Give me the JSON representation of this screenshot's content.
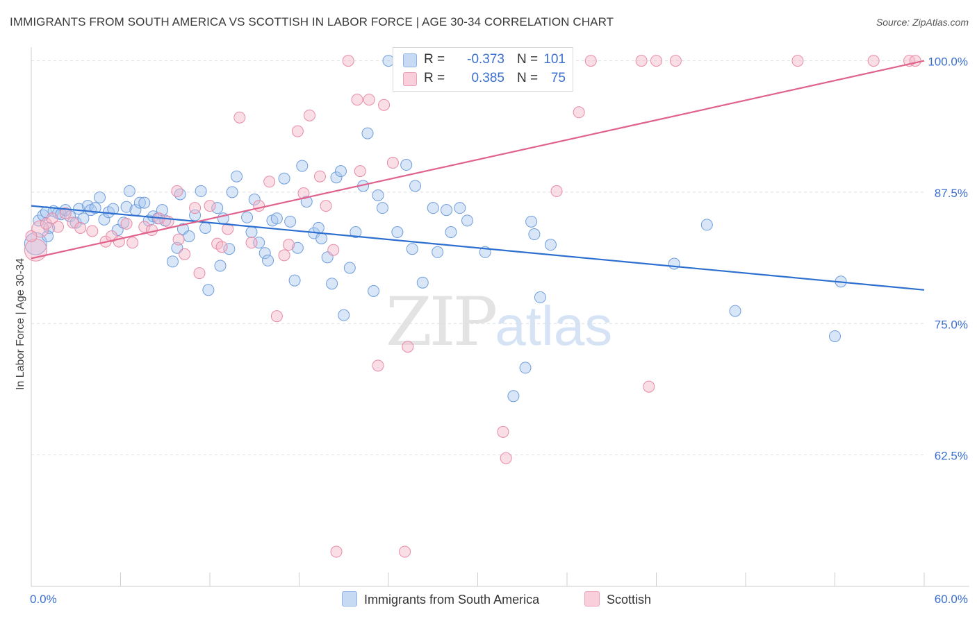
{
  "title": "IMMIGRANTS FROM SOUTH AMERICA VS SCOTTISH IN LABOR FORCE | AGE 30-34 CORRELATION CHART",
  "source": "Source: ZipAtlas.com",
  "watermark_main": "ZIP",
  "watermark_sub": "atlas",
  "legend": {
    "row1": {
      "r_label": "R =",
      "r_value": "-0.373",
      "n_label": "N =",
      "n_value": "101",
      "color": "#a9c8ef"
    },
    "row2": {
      "r_label": "R =",
      "r_value": "0.385",
      "n_label": "N =",
      "n_value": "75",
      "color": "#f5b5c8"
    }
  },
  "bottom_legend": {
    "series1": "Immigrants from South America",
    "series2": "Scottish"
  },
  "colors": {
    "blue_fill": "#a9c8ef",
    "blue_stroke": "#6e9ddb",
    "blue_line": "#2d6fd0",
    "pink_fill": "#f5b5c8",
    "pink_stroke": "#e88aa7",
    "pink_line": "#e0628d",
    "tick_text": "#3b6fcf",
    "grid": "#d8dde6"
  },
  "chart_data": {
    "type": "scatter",
    "title": "IMMIGRANTS FROM SOUTH AMERICA VS SCOTTISH IN LABOR FORCE | AGE 30-34 CORRELATION CHART",
    "xlabel": "",
    "ylabel": "In Labor Force | Age 30-34",
    "xlim": [
      0,
      60
    ],
    "ylim": [
      50.0,
      100.5
    ],
    "x_tick_labels": [
      "0.0%",
      "60.0%"
    ],
    "y_ticks": [
      62.5,
      75.0,
      87.5,
      100.0
    ],
    "y_tick_labels": [
      "62.5%",
      "75.0%",
      "87.5%",
      "100.0%"
    ],
    "grid": true,
    "legend_position": "top-center",
    "series": [
      {
        "name": "Immigrants from South America",
        "color": "#a9c8ef",
        "trend": {
          "x": [
            0,
            60
          ],
          "y": [
            86.2,
            78.2
          ]
        },
        "points": [
          [
            0.5,
            84.8
          ],
          [
            0.8,
            85.3
          ],
          [
            1.0,
            85.6
          ],
          [
            1.2,
            84.1
          ],
          [
            1.5,
            85.7
          ],
          [
            1.8,
            85.5
          ],
          [
            2.0,
            85.4
          ],
          [
            2.3,
            85.8
          ],
          [
            2.6,
            85.2
          ],
          [
            3.0,
            84.6
          ],
          [
            3.2,
            85.9
          ],
          [
            3.5,
            85.0
          ],
          [
            3.8,
            86.2
          ],
          [
            4.0,
            85.8
          ],
          [
            4.3,
            86.0
          ],
          [
            4.6,
            87.0
          ],
          [
            4.9,
            84.9
          ],
          [
            5.2,
            85.6
          ],
          [
            5.5,
            85.9
          ],
          [
            5.8,
            83.9
          ],
          [
            6.2,
            84.6
          ],
          [
            6.4,
            86.1
          ],
          [
            6.6,
            87.6
          ],
          [
            7.0,
            85.8
          ],
          [
            7.3,
            86.5
          ],
          [
            7.6,
            86.5
          ],
          [
            7.9,
            84.8
          ],
          [
            8.2,
            85.2
          ],
          [
            8.5,
            85.0
          ],
          [
            8.8,
            85.8
          ],
          [
            9.0,
            84.8
          ],
          [
            9.5,
            80.9
          ],
          [
            9.8,
            82.2
          ],
          [
            10.0,
            87.3
          ],
          [
            10.2,
            84.0
          ],
          [
            10.6,
            83.3
          ],
          [
            11.0,
            85.3
          ],
          [
            11.4,
            87.6
          ],
          [
            11.7,
            84.1
          ],
          [
            11.9,
            78.2
          ],
          [
            12.5,
            86.0
          ],
          [
            12.7,
            80.5
          ],
          [
            12.9,
            85.0
          ],
          [
            13.3,
            82.1
          ],
          [
            13.5,
            87.5
          ],
          [
            13.8,
            89.0
          ],
          [
            14.5,
            85.1
          ],
          [
            14.8,
            83.7
          ],
          [
            15.0,
            86.8
          ],
          [
            15.3,
            82.7
          ],
          [
            15.7,
            81.7
          ],
          [
            15.9,
            81.0
          ],
          [
            16.2,
            84.8
          ],
          [
            16.5,
            85.0
          ],
          [
            17.0,
            88.8
          ],
          [
            17.4,
            84.7
          ],
          [
            17.7,
            79.1
          ],
          [
            17.9,
            82.2
          ],
          [
            18.2,
            90.0
          ],
          [
            18.5,
            86.6
          ],
          [
            19.0,
            83.6
          ],
          [
            19.3,
            84.1
          ],
          [
            19.5,
            83.1
          ],
          [
            19.9,
            81.3
          ],
          [
            20.2,
            78.8
          ],
          [
            20.5,
            88.9
          ],
          [
            20.8,
            89.5
          ],
          [
            21.0,
            75.8
          ],
          [
            21.4,
            80.3
          ],
          [
            21.8,
            83.7
          ],
          [
            22.3,
            88.1
          ],
          [
            22.6,
            93.1
          ],
          [
            23.0,
            78.1
          ],
          [
            23.3,
            87.2
          ],
          [
            23.6,
            86.0
          ],
          [
            24.0,
            100.0
          ],
          [
            24.6,
            83.7
          ],
          [
            25.2,
            90.1
          ],
          [
            25.6,
            82.1
          ],
          [
            25.8,
            88.1
          ],
          [
            26.3,
            78.9
          ],
          [
            27.0,
            86.0
          ],
          [
            27.3,
            81.8
          ],
          [
            27.9,
            85.8
          ],
          [
            28.2,
            83.7
          ],
          [
            28.8,
            86.0
          ],
          [
            29.3,
            84.8
          ],
          [
            30.5,
            81.8
          ],
          [
            32.4,
            68.1
          ],
          [
            33.2,
            70.8
          ],
          [
            33.6,
            84.7
          ],
          [
            33.8,
            83.5
          ],
          [
            34.2,
            77.5
          ],
          [
            34.9,
            82.5
          ],
          [
            43.2,
            80.7
          ],
          [
            45.4,
            84.4
          ],
          [
            47.3,
            76.2
          ],
          [
            54.0,
            73.8
          ],
          [
            54.4,
            79.0
          ],
          [
            0.3,
            82.6
          ],
          [
            1.1,
            83.3
          ]
        ]
      },
      {
        "name": "Scottish",
        "color": "#f5b5c8",
        "trend": {
          "x": [
            0,
            60
          ],
          "y": [
            81.2,
            100.0
          ]
        },
        "points": [
          [
            0.3,
            82.0
          ],
          [
            0.6,
            84.0
          ],
          [
            1.0,
            84.5
          ],
          [
            1.4,
            85.0
          ],
          [
            1.8,
            84.2
          ],
          [
            2.3,
            85.5
          ],
          [
            2.8,
            84.6
          ],
          [
            3.3,
            84.1
          ],
          [
            4.1,
            83.8
          ],
          [
            5.0,
            82.8
          ],
          [
            5.4,
            83.3
          ],
          [
            5.9,
            82.8
          ],
          [
            6.4,
            84.5
          ],
          [
            6.8,
            82.7
          ],
          [
            7.6,
            84.2
          ],
          [
            8.1,
            83.9
          ],
          [
            8.6,
            85.0
          ],
          [
            9.2,
            84.7
          ],
          [
            9.8,
            87.6
          ],
          [
            9.9,
            83.0
          ],
          [
            10.3,
            81.6
          ],
          [
            11.0,
            86.0
          ],
          [
            11.3,
            79.8
          ],
          [
            12.0,
            86.2
          ],
          [
            12.5,
            82.6
          ],
          [
            12.8,
            82.3
          ],
          [
            13.2,
            84.0
          ],
          [
            14.0,
            94.6
          ],
          [
            14.8,
            82.7
          ],
          [
            15.3,
            86.2
          ],
          [
            16.0,
            88.5
          ],
          [
            16.5,
            75.7
          ],
          [
            17.0,
            81.5
          ],
          [
            17.3,
            82.5
          ],
          [
            17.9,
            93.3
          ],
          [
            18.3,
            87.4
          ],
          [
            18.7,
            94.8
          ],
          [
            19.4,
            89.0
          ],
          [
            19.8,
            86.2
          ],
          [
            20.3,
            82.0
          ],
          [
            21.3,
            100.0
          ],
          [
            21.9,
            96.3
          ],
          [
            22.1,
            89.5
          ],
          [
            22.7,
            96.3
          ],
          [
            23.3,
            71.0
          ],
          [
            23.7,
            95.8
          ],
          [
            24.3,
            90.3
          ],
          [
            25.3,
            72.8
          ],
          [
            26.3,
            100.0
          ],
          [
            28.0,
            100.0
          ],
          [
            30.1,
            100.0
          ],
          [
            31.9,
            100.0
          ],
          [
            31.5,
            100.0
          ],
          [
            33.0,
            100.0
          ],
          [
            34.1,
            100.0
          ],
          [
            35.3,
            87.6
          ],
          [
            36.8,
            95.1
          ],
          [
            37.6,
            100.0
          ],
          [
            41.0,
            100.0
          ],
          [
            42.0,
            100.0
          ],
          [
            43.3,
            100.0
          ],
          [
            51.5,
            100.0
          ],
          [
            56.6,
            100.0
          ],
          [
            59.0,
            100.0
          ],
          [
            59.4,
            100.0
          ],
          [
            41.5,
            69.0
          ],
          [
            31.7,
            64.7
          ],
          [
            31.9,
            62.2
          ],
          [
            20.5,
            53.3
          ],
          [
            25.1,
            53.3
          ],
          [
            30.2,
            100.0
          ],
          [
            35.8,
            100.0
          ],
          [
            0.0,
            83.3
          ],
          [
            26.8,
            100.0
          ],
          [
            28.6,
            100.0
          ]
        ]
      }
    ]
  }
}
